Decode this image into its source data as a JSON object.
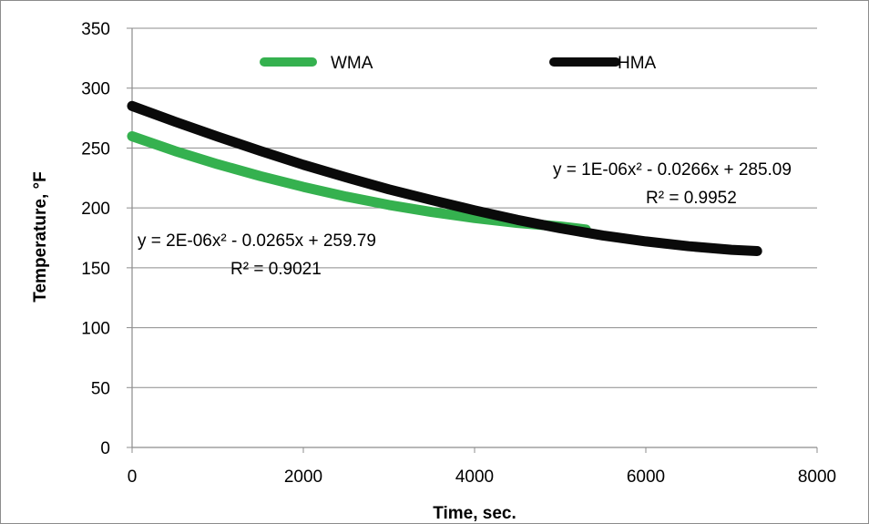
{
  "colors": {
    "wma": "#35b14f",
    "hma": "#0a0a0a",
    "grid": "#8c8c8c"
  },
  "chart_data": {
    "type": "line",
    "title": "",
    "xlabel": "Time, sec.",
    "ylabel": "Temperature, °F",
    "xlim": [
      0,
      8000
    ],
    "ylim": [
      0,
      350
    ],
    "xticks": [
      "0",
      "2000",
      "4000",
      "6000",
      "8000"
    ],
    "yticks": [
      "0",
      "50",
      "100",
      "150",
      "200",
      "250",
      "300",
      "350"
    ],
    "grid": "horizontal",
    "legend_position": "top",
    "series": [
      {
        "name": "WMA",
        "color": "#35b14f",
        "x": [
          0,
          500,
          1000,
          1500,
          2000,
          2500,
          3000,
          3500,
          4000,
          4500,
          5000,
          5300
        ],
        "y": [
          259.8,
          247.5,
          236.5,
          226.5,
          217.5,
          209.5,
          202.5,
          196.5,
          191.5,
          187.5,
          184.5,
          182
        ]
      },
      {
        "name": "HMA",
        "color": "#0a0a0a",
        "x": [
          0,
          500,
          1000,
          1500,
          2000,
          2500,
          3000,
          3500,
          4000,
          4500,
          5000,
          5500,
          6000,
          6500,
          7000,
          7300
        ],
        "y": [
          285.1,
          272,
          259.5,
          247.5,
          236,
          225.5,
          215.5,
          206.5,
          198,
          190,
          183,
          177,
          172,
          168,
          165,
          164
        ]
      }
    ],
    "annotations": [
      {
        "id": "hma_eq",
        "text": "y = 1E-06x² - 0.0266x + 285.09"
      },
      {
        "id": "hma_r2",
        "text": "R² = 0.9952"
      },
      {
        "id": "wma_eq",
        "text": "y = 2E-06x² - 0.0265x + 259.79"
      },
      {
        "id": "wma_r2",
        "text": "R² = 0.9021"
      }
    ]
  }
}
